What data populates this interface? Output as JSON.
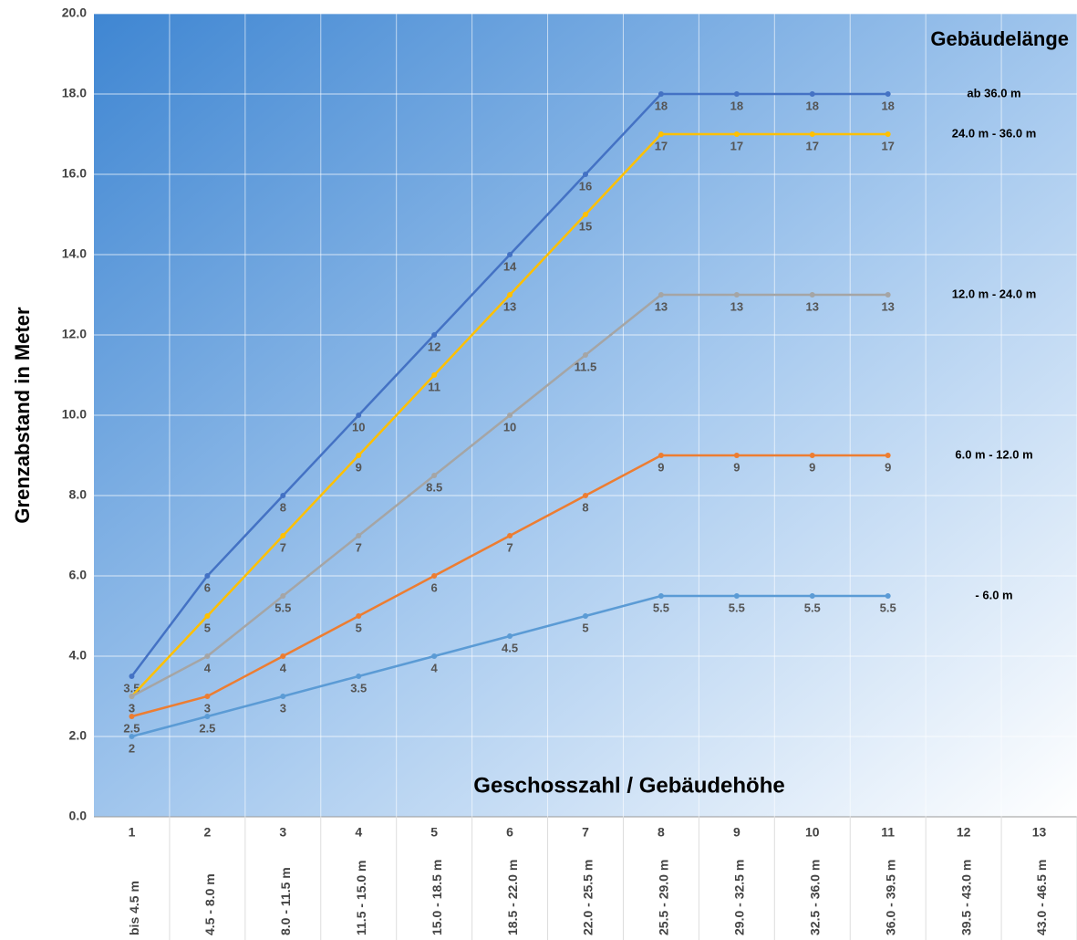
{
  "chart_data": {
    "type": "line",
    "title": "Gebäudelänge",
    "x_label": "Geschosszahl / Gebäudehöhe",
    "y_label": "Grenzabstand in Meter",
    "categories": [
      "1",
      "2",
      "3",
      "4",
      "5",
      "6",
      "7",
      "8",
      "9",
      "10",
      "11",
      "12",
      "13"
    ],
    "category_sublabels": [
      "bis 4.5 m",
      "4.5 - 8.0 m",
      "8.0 - 11.5 m",
      "11.5 - 15.0 m",
      "15.0 - 18.5 m",
      "18.5 - 22.0 m",
      "22.0 - 25.5 m",
      "25.5 - 29.0 m",
      "29.0 - 32.5 m",
      "32.5 - 36.0 m",
      "36.0 - 39.5 m",
      "39.5 - 43.0 m",
      "43.0 - 46.5 m"
    ],
    "series": [
      {
        "name": "ab 36.0 m",
        "color": "#4472c4",
        "values": [
          3.5,
          6,
          8,
          10,
          12,
          14,
          16,
          18,
          18,
          18,
          18,
          null,
          null
        ]
      },
      {
        "name": "24.0 m - 36.0 m",
        "color": "#ffc000",
        "values": [
          3,
          5,
          7,
          9,
          11,
          13,
          15,
          17,
          17,
          17,
          17,
          null,
          null
        ]
      },
      {
        "name": "12.0 m - 24.0 m",
        "color": "#a5a5a5",
        "values": [
          3,
          4,
          5.5,
          7,
          8.5,
          10,
          11.5,
          13,
          13,
          13,
          13,
          null,
          null
        ]
      },
      {
        "name": "6.0 m - 12.0 m",
        "color": "#ed7d31",
        "values": [
          2.5,
          3,
          4,
          5,
          6,
          7,
          8,
          9,
          9,
          9,
          9,
          null,
          null
        ]
      },
      {
        "name": "- 6.0 m",
        "color": "#5b9bd5",
        "values": [
          2,
          2.5,
          3,
          3.5,
          4,
          4.5,
          5,
          5.5,
          5.5,
          5.5,
          5.5,
          null,
          null
        ]
      }
    ],
    "ylim": [
      0,
      20
    ],
    "yticks": [
      {
        "value": 0,
        "label": "0.0"
      },
      {
        "value": 2,
        "label": "2.0"
      },
      {
        "value": 4,
        "label": "4.0"
      },
      {
        "value": 6,
        "label": "6.0"
      },
      {
        "value": 8,
        "label": "8.0"
      },
      {
        "value": 10,
        "label": "10.0"
      },
      {
        "value": 12,
        "label": "12.0"
      },
      {
        "value": 14,
        "label": "14.0"
      },
      {
        "value": 16,
        "label": "16.0"
      },
      {
        "value": 18,
        "label": "18.0"
      },
      {
        "value": 20,
        "label": "20.0"
      }
    ],
    "grid": true
  }
}
